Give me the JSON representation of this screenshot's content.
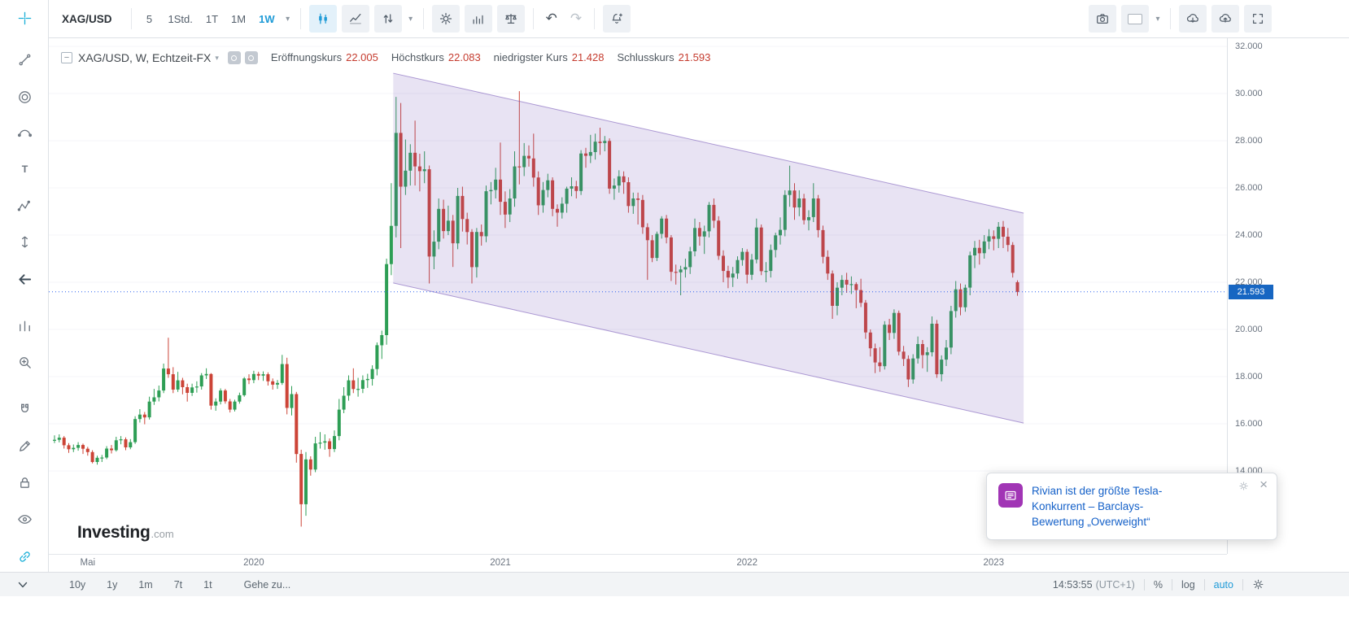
{
  "toolbar": {
    "symbol": "XAG/USD",
    "timeframes": [
      "5",
      "1Std.",
      "1T",
      "1M",
      "1W"
    ],
    "active_timeframe": "1W",
    "caret_glyph": "▾",
    "undo_glyph": "↶",
    "redo_glyph": "↷",
    "icon_names": [
      "candlestick-style-icon",
      "line-style-icon",
      "updown-arrows-icon",
      "settings-gear-icon",
      "indicators-icon",
      "compare-scales-icon",
      "undo-icon",
      "redo-icon",
      "alert-bell-icon",
      "camera-icon",
      "layout-icon",
      "cloud-download-icon",
      "cloud-upload-icon",
      "fullscreen-icon"
    ]
  },
  "sidebar_tools": [
    "crosshair",
    "trendline",
    "fib-circles",
    "pitchfork",
    "text",
    "pattern",
    "price-range",
    "back-arrow",
    "bars-pattern",
    "zoom-in",
    "magnet",
    "draw",
    "lock",
    "visibility",
    "link"
  ],
  "legend": {
    "collapse_glyph": "−",
    "title": "XAG/USD, W, Echtzeit-FX",
    "fields": [
      {
        "label": "Eröffnungskurs",
        "value": "22.005"
      },
      {
        "label": "Höchstkurs",
        "value": "22.083"
      },
      {
        "label": "niedrigster Kurs",
        "value": "21.428"
      },
      {
        "label": "Schlusskurs",
        "value": "21.593"
      }
    ],
    "value_color": "#c53b2e"
  },
  "watermark": {
    "brand": "Investing",
    "domain": ".com"
  },
  "price_axis": {
    "labels": [
      "32.000",
      "30.000",
      "28.000",
      "26.000",
      "24.000",
      "22.000",
      "20.000",
      "18.000",
      "16.000",
      "14.000"
    ],
    "tag": "21.593",
    "tag_color": "#1766c2"
  },
  "bottom_bar": {
    "ranges": [
      "10y",
      "1y",
      "1m",
      "7t",
      "1t"
    ],
    "goto_label": "Gehe zu...",
    "time": "14:53:55",
    "utc": "(UTC+1)",
    "percent_label": "%",
    "log_label": "log",
    "auto_label": "auto"
  },
  "notification": {
    "lines": [
      "Rivian ist der größte Tesla-",
      "Konkurrent – Barclays-",
      "Bewertung „Overweight“"
    ],
    "close_glyph": "×",
    "icon_color": "#a135b5",
    "text_color": "#1460c8"
  },
  "chart_data": {
    "type": "candlestick",
    "title": "XAG/USD, W, Echtzeit-FX",
    "symbol": "XAG/USD",
    "interval": "W",
    "last_ohlc": {
      "open": 22.005,
      "high": 22.083,
      "low": 21.428,
      "close": 21.593
    },
    "current_price": 21.593,
    "up_color": "#2e9e55",
    "down_color": "#cc4437",
    "grid_prices": [
      14,
      16,
      18,
      20,
      22,
      24,
      26,
      28,
      30,
      32
    ],
    "y_axis_range": [
      13.2,
      33.6
    ],
    "x_labels": [
      {
        "text": "Mai",
        "i": 7
      },
      {
        "text": "2020",
        "i": 42
      },
      {
        "text": "2021",
        "i": 94
      },
      {
        "text": "2022",
        "i": 146
      },
      {
        "text": "2023",
        "i": 198
      }
    ],
    "channel": {
      "start_index": 71.4,
      "end_index": 204.3,
      "top_start": 30.86,
      "top_end": 24.93,
      "bottom_start": 21.97,
      "bottom_end": 16.03,
      "fill": "rgba(113,80,181,0.16)",
      "stroke": "rgba(113,80,181,0.55)"
    },
    "candles": [
      [
        15.3,
        15.51,
        15.18,
        15.32
      ],
      [
        15.32,
        15.55,
        15.21,
        15.41
      ],
      [
        15.41,
        15.48,
        14.95,
        15.09
      ],
      [
        15.09,
        15.18,
        14.77,
        14.92
      ],
      [
        14.92,
        15.12,
        14.8,
        14.98
      ],
      [
        14.98,
        15.22,
        14.86,
        15.1
      ],
      [
        15.1,
        15.16,
        14.72,
        14.94
      ],
      [
        14.94,
        15.02,
        14.65,
        14.8
      ],
      [
        14.8,
        14.88,
        14.32,
        14.38
      ],
      [
        14.38,
        14.65,
        14.27,
        14.56
      ],
      [
        14.56,
        14.68,
        14.38,
        14.57
      ],
      [
        14.57,
        15.05,
        14.5,
        14.95
      ],
      [
        14.95,
        15.1,
        14.74,
        14.88
      ],
      [
        14.88,
        15.45,
        14.82,
        15.3
      ],
      [
        15.3,
        15.48,
        15.13,
        15.34
      ],
      [
        15.34,
        15.42,
        14.88,
        15.0
      ],
      [
        15.0,
        15.35,
        14.92,
        15.22
      ],
      [
        15.22,
        16.32,
        15.15,
        16.2
      ],
      [
        16.2,
        16.62,
        16.05,
        16.39
      ],
      [
        16.39,
        16.5,
        15.98,
        16.27
      ],
      [
        16.27,
        17.15,
        16.18,
        16.94
      ],
      [
        16.94,
        17.48,
        16.8,
        17.12
      ],
      [
        17.12,
        17.62,
        16.95,
        17.41
      ],
      [
        17.41,
        18.55,
        17.3,
        18.34
      ],
      [
        18.34,
        19.65,
        17.95,
        18.1
      ],
      [
        18.1,
        18.4,
        17.3,
        17.45
      ],
      [
        17.45,
        18.2,
        17.35,
        17.84
      ],
      [
        17.84,
        17.95,
        17.25,
        17.55
      ],
      [
        17.55,
        17.7,
        16.94,
        17.31
      ],
      [
        17.31,
        17.7,
        17.18,
        17.54
      ],
      [
        17.54,
        17.8,
        17.32,
        17.58
      ],
      [
        17.58,
        18.15,
        17.45,
        18.05
      ],
      [
        18.05,
        18.35,
        17.9,
        18.11
      ],
      [
        18.11,
        18.15,
        16.6,
        16.77
      ],
      [
        16.77,
        17.08,
        16.55,
        16.94
      ],
      [
        16.94,
        17.5,
        16.82,
        17.41
      ],
      [
        17.41,
        17.48,
        16.85,
        16.95
      ],
      [
        16.95,
        17.05,
        16.48,
        16.6
      ],
      [
        16.6,
        17.02,
        16.52,
        16.94
      ],
      [
        16.94,
        17.32,
        16.85,
        17.21
      ],
      [
        17.21,
        17.98,
        17.15,
        17.92
      ],
      [
        17.92,
        18.1,
        17.68,
        17.85
      ],
      [
        17.85,
        18.25,
        17.72,
        18.11
      ],
      [
        18.11,
        18.2,
        17.85,
        18.04
      ],
      [
        18.04,
        18.22,
        17.82,
        18.1
      ],
      [
        18.1,
        18.18,
        17.62,
        17.8
      ],
      [
        17.8,
        17.92,
        17.45,
        17.66
      ],
      [
        17.66,
        17.85,
        17.48,
        17.73
      ],
      [
        17.73,
        18.92,
        17.65,
        18.53
      ],
      [
        18.53,
        18.8,
        16.4,
        16.67
      ],
      [
        16.67,
        17.6,
        16.35,
        17.26
      ],
      [
        17.26,
        17.35,
        14.35,
        14.72
      ],
      [
        14.72,
        14.9,
        11.64,
        12.59
      ],
      [
        12.59,
        14.8,
        12.1,
        14.49
      ],
      [
        14.49,
        14.62,
        13.8,
        14.06
      ],
      [
        14.06,
        15.45,
        13.95,
        15.17
      ],
      [
        15.17,
        15.65,
        14.95,
        15.2
      ],
      [
        15.2,
        15.55,
        14.9,
        15.26
      ],
      [
        15.26,
        15.38,
        14.6,
        14.93
      ],
      [
        14.93,
        15.72,
        14.8,
        15.48
      ],
      [
        15.48,
        17.05,
        15.3,
        16.6
      ],
      [
        16.6,
        17.55,
        16.45,
        17.19
      ],
      [
        17.19,
        18.05,
        16.98,
        17.84
      ],
      [
        17.84,
        18.35,
        17.3,
        17.47
      ],
      [
        17.47,
        17.95,
        17.15,
        17.48
      ],
      [
        17.48,
        18.05,
        17.3,
        17.85
      ],
      [
        17.85,
        18.12,
        17.52,
        17.9
      ],
      [
        17.9,
        18.48,
        17.62,
        18.32
      ],
      [
        18.32,
        19.45,
        18.05,
        19.33
      ],
      [
        19.33,
        19.95,
        18.75,
        19.76
      ],
      [
        19.76,
        23.0,
        19.35,
        22.77
      ],
      [
        22.77,
        26.2,
        22.3,
        24.39
      ],
      [
        24.39,
        29.86,
        23.9,
        28.33
      ],
      [
        28.33,
        29.6,
        23.45,
        26.05
      ],
      [
        26.05,
        28.05,
        25.7,
        26.73
      ],
      [
        26.73,
        27.85,
        26.1,
        27.49
      ],
      [
        27.49,
        28.85,
        26.1,
        26.91
      ],
      [
        26.91,
        27.45,
        25.85,
        26.71
      ],
      [
        26.71,
        27.55,
        26.2,
        26.79
      ],
      [
        26.79,
        26.95,
        21.95,
        23.09
      ],
      [
        23.09,
        24.2,
        22.55,
        23.72
      ],
      [
        23.72,
        25.55,
        23.4,
        25.11
      ],
      [
        25.11,
        25.5,
        23.85,
        24.17
      ],
      [
        24.17,
        25.25,
        24.0,
        24.61
      ],
      [
        24.61,
        24.85,
        22.65,
        23.65
      ],
      [
        23.65,
        26.0,
        23.4,
        25.66
      ],
      [
        25.66,
        26.05,
        24.15,
        24.68
      ],
      [
        24.68,
        24.95,
        23.6,
        24.13
      ],
      [
        24.13,
        24.25,
        21.95,
        22.64
      ],
      [
        22.64,
        24.3,
        22.2,
        24.13
      ],
      [
        24.13,
        24.45,
        23.55,
        23.95
      ],
      [
        23.95,
        26.1,
        23.7,
        25.86
      ],
      [
        25.86,
        26.25,
        25.3,
        25.91
      ],
      [
        25.91,
        26.85,
        25.55,
        26.35
      ],
      [
        26.35,
        27.92,
        24.85,
        25.41
      ],
      [
        25.41,
        25.85,
        24.3,
        24.87
      ],
      [
        24.87,
        25.95,
        24.55,
        25.55
      ],
      [
        25.55,
        27.55,
        25.2,
        26.91
      ],
      [
        26.91,
        30.1,
        26.15,
        26.88
      ],
      [
        26.88,
        27.9,
        26.5,
        27.36
      ],
      [
        27.36,
        27.8,
        26.9,
        27.25
      ],
      [
        27.25,
        28.3,
        26.05,
        26.44
      ],
      [
        26.44,
        26.7,
        24.85,
        25.26
      ],
      [
        25.26,
        26.25,
        24.95,
        25.91
      ],
      [
        25.91,
        26.6,
        25.6,
        26.32
      ],
      [
        26.32,
        26.45,
        24.8,
        25.11
      ],
      [
        25.11,
        25.3,
        24.35,
        24.95
      ],
      [
        24.95,
        25.6,
        24.7,
        25.33
      ],
      [
        25.33,
        26.05,
        24.95,
        25.97
      ],
      [
        25.97,
        26.45,
        25.65,
        26.07
      ],
      [
        26.07,
        26.3,
        25.55,
        25.87
      ],
      [
        25.87,
        27.6,
        25.7,
        27.46
      ],
      [
        27.46,
        27.7,
        26.85,
        27.36
      ],
      [
        27.36,
        28.25,
        27.05,
        27.52
      ],
      [
        27.52,
        28.3,
        27.2,
        27.96
      ],
      [
        27.96,
        28.55,
        27.4,
        27.9
      ],
      [
        27.9,
        28.2,
        27.55,
        27.99
      ],
      [
        27.99,
        28.1,
        25.75,
        25.97
      ],
      [
        25.97,
        26.4,
        25.5,
        26.1
      ],
      [
        26.1,
        26.75,
        25.8,
        26.49
      ],
      [
        26.49,
        26.7,
        25.75,
        26.24
      ],
      [
        26.24,
        26.45,
        24.95,
        25.23
      ],
      [
        25.23,
        25.8,
        24.9,
        25.55
      ],
      [
        25.55,
        25.8,
        24.45,
        25.49
      ],
      [
        25.49,
        25.7,
        24.05,
        24.33
      ],
      [
        24.33,
        24.5,
        22.1,
        23.78
      ],
      [
        23.78,
        24.0,
        22.85,
        23.03
      ],
      [
        23.03,
        24.15,
        22.9,
        24.05
      ],
      [
        24.05,
        24.8,
        23.85,
        24.7
      ],
      [
        24.7,
        24.85,
        23.65,
        23.9
      ],
      [
        23.9,
        24.0,
        22.05,
        22.44
      ],
      [
        22.44,
        22.75,
        21.9,
        22.42
      ],
      [
        22.42,
        22.7,
        21.45,
        22.54
      ],
      [
        22.54,
        23.0,
        22.2,
        22.64
      ],
      [
        22.64,
        23.5,
        22.35,
        23.31
      ],
      [
        23.31,
        24.7,
        23.1,
        24.3
      ],
      [
        24.3,
        24.55,
        23.55,
        23.94
      ],
      [
        23.94,
        24.4,
        23.2,
        24.16
      ],
      [
        24.16,
        25.4,
        23.9,
        25.28
      ],
      [
        25.28,
        25.55,
        24.3,
        24.61
      ],
      [
        24.61,
        24.8,
        22.95,
        23.12
      ],
      [
        23.12,
        23.35,
        22.0,
        22.48
      ],
      [
        22.48,
        22.7,
        21.75,
        22.2
      ],
      [
        22.2,
        22.65,
        21.8,
        22.37
      ],
      [
        22.37,
        23.1,
        22.15,
        22.94
      ],
      [
        22.94,
        23.45,
        22.7,
        23.29
      ],
      [
        23.29,
        23.4,
        21.95,
        22.32
      ],
      [
        22.32,
        23.2,
        22.1,
        22.96
      ],
      [
        22.96,
        24.7,
        22.8,
        24.32
      ],
      [
        24.32,
        24.45,
        22.3,
        22.47
      ],
      [
        22.47,
        22.85,
        22.0,
        22.48
      ],
      [
        22.48,
        23.6,
        22.2,
        23.37
      ],
      [
        23.37,
        24.1,
        23.05,
        23.99
      ],
      [
        23.99,
        24.75,
        23.6,
        24.22
      ],
      [
        24.22,
        25.9,
        23.95,
        25.7
      ],
      [
        25.7,
        26.94,
        25.2,
        25.89
      ],
      [
        25.89,
        26.2,
        24.65,
        25.17
      ],
      [
        25.17,
        25.9,
        24.8,
        25.55
      ],
      [
        25.55,
        25.75,
        24.45,
        24.63
      ],
      [
        24.63,
        25.05,
        24.2,
        24.76
      ],
      [
        24.76,
        26.2,
        24.55,
        25.55
      ],
      [
        25.55,
        25.7,
        23.9,
        24.21
      ],
      [
        24.21,
        24.4,
        22.8,
        23.08
      ],
      [
        23.08,
        23.35,
        22.1,
        22.37
      ],
      [
        22.37,
        22.5,
        20.45,
        21.0
      ],
      [
        21.0,
        22.0,
        20.6,
        21.77
      ],
      [
        21.77,
        22.3,
        21.45,
        22.1
      ],
      [
        22.1,
        22.4,
        21.55,
        21.9
      ],
      [
        21.9,
        22.25,
        21.5,
        21.92
      ],
      [
        21.92,
        22.0,
        20.9,
        21.67
      ],
      [
        21.67,
        22.15,
        20.95,
        21.13
      ],
      [
        21.13,
        21.25,
        19.6,
        19.87
      ],
      [
        19.87,
        20.0,
        18.85,
        19.2
      ],
      [
        19.2,
        19.4,
        18.15,
        18.6
      ],
      [
        18.6,
        19.25,
        18.2,
        18.44
      ],
      [
        18.44,
        20.35,
        18.3,
        20.2
      ],
      [
        20.2,
        20.45,
        19.55,
        19.85
      ],
      [
        19.85,
        20.85,
        19.6,
        20.7
      ],
      [
        20.7,
        20.8,
        18.9,
        19.06
      ],
      [
        19.06,
        19.3,
        18.45,
        18.75
      ],
      [
        18.75,
        18.9,
        17.56,
        17.88
      ],
      [
        17.88,
        18.95,
        17.7,
        18.77
      ],
      [
        18.77,
        19.7,
        18.55,
        19.38
      ],
      [
        19.38,
        19.55,
        18.35,
        18.91
      ],
      [
        18.91,
        19.25,
        18.2,
        19.03
      ],
      [
        19.03,
        20.55,
        18.85,
        20.24
      ],
      [
        20.24,
        20.4,
        17.95,
        18.1
      ],
      [
        18.1,
        18.9,
        17.8,
        18.72
      ],
      [
        18.72,
        19.55,
        18.45,
        19.23
      ],
      [
        19.23,
        21.0,
        18.95,
        20.78
      ],
      [
        20.78,
        22.05,
        20.5,
        21.7
      ],
      [
        21.7,
        21.95,
        20.6,
        20.94
      ],
      [
        20.94,
        21.9,
        20.75,
        21.77
      ],
      [
        21.77,
        23.3,
        21.45,
        23.14
      ],
      [
        23.14,
        23.75,
        22.6,
        23.46
      ],
      [
        23.46,
        23.8,
        22.75,
        23.23
      ],
      [
        23.23,
        24.0,
        23.0,
        23.73
      ],
      [
        23.73,
        24.25,
        23.4,
        23.95
      ],
      [
        23.95,
        24.2,
        23.35,
        23.84
      ],
      [
        23.84,
        24.55,
        23.45,
        24.35
      ],
      [
        24.35,
        24.6,
        23.45,
        23.93
      ],
      [
        23.93,
        24.3,
        23.3,
        23.58
      ],
      [
        23.58,
        23.7,
        22.2,
        22.4
      ],
      [
        22.005,
        22.083,
        21.428,
        21.593
      ]
    ]
  }
}
